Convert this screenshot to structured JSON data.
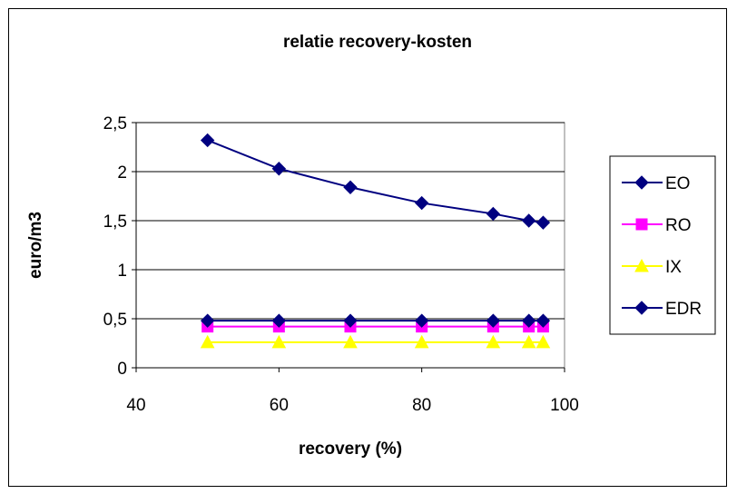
{
  "chart_data": {
    "type": "line",
    "title": "relatie recovery-kosten",
    "xlabel": "recovery (%)",
    "ylabel": "euro/m3",
    "xlim": [
      40,
      100
    ],
    "ylim": [
      0,
      2.5
    ],
    "x_ticks": [
      "40",
      "60",
      "80",
      "100"
    ],
    "y_ticks": [
      "0",
      "0,5",
      "1",
      "1,5",
      "2",
      "2,5"
    ],
    "grid": "horizontal",
    "legend_position": "right",
    "x": [
      50,
      60,
      70,
      80,
      90,
      95,
      97
    ],
    "series": [
      {
        "name": "EO",
        "color": "#000080",
        "marker": "diamond",
        "values": [
          2.32,
          2.03,
          1.84,
          1.68,
          1.57,
          1.5,
          1.48
        ]
      },
      {
        "name": "RO",
        "color": "#ff00ff",
        "marker": "square",
        "values": [
          0.42,
          0.42,
          0.42,
          0.42,
          0.42,
          0.42,
          0.42
        ]
      },
      {
        "name": "IX",
        "color": "#ffff00",
        "marker": "triangle",
        "values": [
          0.26,
          0.26,
          0.26,
          0.26,
          0.26,
          0.26,
          0.26
        ]
      },
      {
        "name": "EDR",
        "color": "#000080",
        "marker": "diamond",
        "values": [
          0.48,
          0.48,
          0.48,
          0.48,
          0.48,
          0.48,
          0.48
        ]
      }
    ]
  }
}
